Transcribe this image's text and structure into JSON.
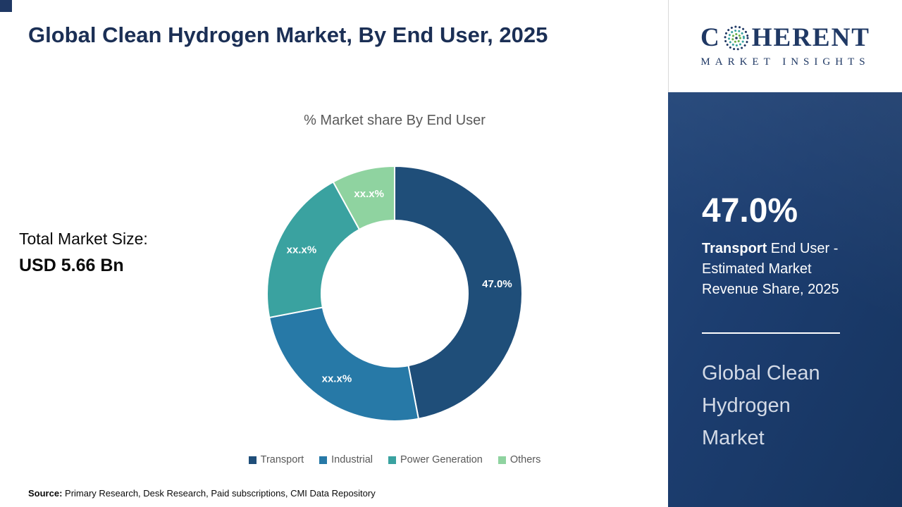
{
  "header": {
    "title": "Global Clean Hydrogen Market, By End User, 2025"
  },
  "chart": {
    "subtitle": "% Market share By End User",
    "total_label": "Total Market Size:",
    "total_value": "USD 5.66 Bn"
  },
  "chart_data": {
    "type": "pie",
    "donut": true,
    "title": "% Market share By End User",
    "categories": [
      "Transport",
      "Industrial",
      "Power Generation",
      "Others"
    ],
    "values": [
      47.0,
      25.0,
      20.0,
      8.0
    ],
    "slice_labels": [
      "47.0%",
      "xx.x%",
      "xx.x%",
      "xx.x%"
    ],
    "colors": [
      "#1f4e79",
      "#2779a7",
      "#3aa2a0",
      "#8fd3a0"
    ],
    "legend_position": "bottom"
  },
  "sidebar": {
    "logo": {
      "brand_c": "C",
      "brand_rest": "HERENT",
      "tagline": "MARKET INSIGHTS",
      "globe_icon": "dotted-globe"
    },
    "stat_value": "47.0%",
    "stat_bold": "Transport",
    "stat_rest": " End User - Estimated Market Revenue Share, 2025",
    "market_name": "Global Clean Hydrogen Market"
  },
  "footer": {
    "source_label": "Source:",
    "source_text": " Primary Research, Desk Research, Paid subscriptions, CMI Data Repository"
  },
  "colors": {
    "accent_navy": "#1f3864",
    "sidebar_navy": "#1c3d6f",
    "text_gray": "#595959",
    "market_name_gray": "#d3dae6"
  }
}
